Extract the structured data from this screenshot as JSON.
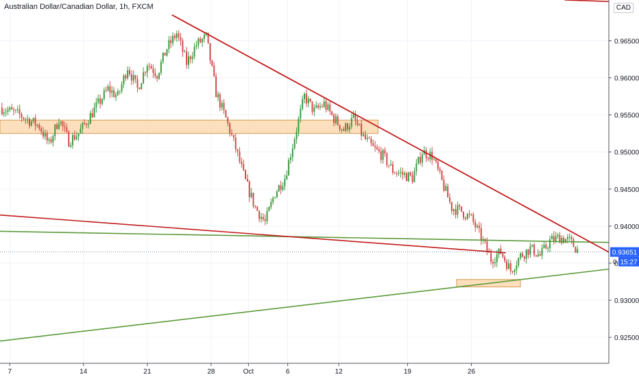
{
  "header": {
    "title": "Australian Dollar/Canadian Dollar, 1h, FXCM",
    "currency": "CAD"
  },
  "price_labels": {
    "last": "0.93651",
    "countdown": "15:27",
    "countdown_prefix": "0"
  },
  "colors": {
    "bull": "#3c9a3c",
    "bear": "#d44a4a",
    "trendline": "#c21a1a",
    "support": "#5a9a3a",
    "zone_fill": "#fbd9b0",
    "zone_stroke": "#d79a50",
    "price_tag": "#2962ff"
  },
  "chart_data": {
    "type": "candlestick",
    "title": "Australian Dollar/Canadian Dollar, 1h, FXCM",
    "ylim": [
      0.9215,
      0.9705
    ],
    "x_tick_labels": [
      "7",
      "14",
      "21",
      "28",
      "Oct",
      "6",
      "12",
      "19",
      "26"
    ],
    "y_tick_labels": [
      "0.92500",
      "0.93000",
      "0.93500",
      "0.94000",
      "0.94500",
      "0.95000",
      "0.95500",
      "0.96000",
      "0.96500"
    ],
    "y_ticks": [
      0.925,
      0.93,
      0.935,
      0.94,
      0.945,
      0.95,
      0.955,
      0.96,
      0.965
    ],
    "last_price": 0.93651,
    "price_path": [
      [
        0,
        0.956
      ],
      [
        2,
        0.955
      ],
      [
        4,
        0.9535
      ],
      [
        5,
        0.951
      ],
      [
        6,
        0.9545
      ],
      [
        7,
        0.9515
      ],
      [
        8,
        0.9525
      ],
      [
        10,
        0.9565
      ],
      [
        11,
        0.9585
      ],
      [
        12,
        0.9575
      ],
      [
        13,
        0.9615
      ],
      [
        14,
        0.9585
      ],
      [
        15,
        0.962
      ],
      [
        16,
        0.9605
      ],
      [
        17,
        0.964
      ],
      [
        18,
        0.966
      ],
      [
        19,
        0.962
      ],
      [
        20,
        0.9645
      ],
      [
        21,
        0.9655
      ],
      [
        22,
        0.958
      ],
      [
        23,
        0.9545
      ],
      [
        24,
        0.9505
      ],
      [
        25,
        0.946
      ],
      [
        26,
        0.9425
      ],
      [
        27,
        0.9405
      ],
      [
        28,
        0.9445
      ],
      [
        29,
        0.9465
      ],
      [
        30,
        0.952
      ],
      [
        31,
        0.9575
      ],
      [
        32,
        0.9555
      ],
      [
        33,
        0.9565
      ],
      [
        34,
        0.9545
      ],
      [
        35,
        0.953
      ],
      [
        36,
        0.9545
      ],
      [
        37,
        0.952
      ],
      [
        38,
        0.9505
      ],
      [
        39,
        0.9495
      ],
      [
        40,
        0.9475
      ],
      [
        41,
        0.947
      ],
      [
        42,
        0.9465
      ],
      [
        43,
        0.95
      ],
      [
        44,
        0.9495
      ],
      [
        45,
        0.946
      ],
      [
        46,
        0.9425
      ],
      [
        47,
        0.942
      ],
      [
        48,
        0.941
      ],
      [
        49,
        0.9385
      ],
      [
        50,
        0.9355
      ],
      [
        51,
        0.9365
      ],
      [
        52,
        0.934
      ],
      [
        53,
        0.936
      ],
      [
        54,
        0.937
      ],
      [
        55,
        0.936
      ],
      [
        56,
        0.938
      ],
      [
        57,
        0.9385
      ],
      [
        58,
        0.938
      ],
      [
        59,
        0.9365
      ]
    ],
    "drawings": {
      "resistance_trendline": {
        "from": [
          17.5,
          0.9685
        ],
        "to": [
          62.0,
          0.9365
        ]
      },
      "lower_trendline": {
        "from": [
          0.0,
          0.9415
        ],
        "to": [
          51.5,
          0.9364
        ]
      },
      "upper_support_line": {
        "from": [
          0.0,
          0.9393
        ],
        "to": [
          62.0,
          0.9378
        ]
      },
      "rising_support_line": {
        "from": [
          0.0,
          0.9245
        ],
        "to": [
          62.0,
          0.9342
        ]
      },
      "supply_zone": {
        "x": [
          0.0,
          38.5
        ],
        "y": [
          0.9525,
          0.9543
        ]
      },
      "demand_zone": {
        "x": [
          46.5,
          53.0
        ],
        "y": [
          0.9318,
          0.9328
        ]
      },
      "top_right_segment": {
        "from": [
          57.5,
          0.9705
        ],
        "to": [
          62.0,
          0.9703
        ]
      }
    }
  }
}
